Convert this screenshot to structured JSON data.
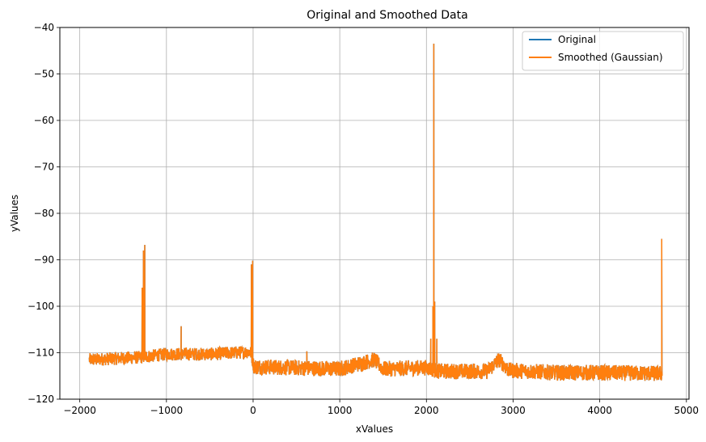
{
  "chart_data": {
    "type": "line",
    "title": "Original and Smoothed Data",
    "xlabel": "xValues",
    "ylabel": "yValues",
    "xlim": [
      -2230,
      5030
    ],
    "ylim": [
      -120,
      -40
    ],
    "xticks": [
      -2000,
      -1000,
      0,
      1000,
      2000,
      3000,
      4000,
      5000
    ],
    "yticks": [
      -120,
      -110,
      -100,
      -90,
      -80,
      -70,
      -60,
      -50,
      -40
    ],
    "grid": true,
    "legend_position": "top-right",
    "series": [
      {
        "name": "Original",
        "color": "#1f77b4"
      },
      {
        "name": "Smoothed (Gaussian)",
        "color": "#ff7f0e"
      }
    ],
    "x_range_data": [
      -1890,
      4720
    ],
    "baseline": [
      {
        "x": -1890,
        "y": -111.5
      },
      {
        "x": -1300,
        "y": -111.0
      },
      {
        "x": -1000,
        "y": -110.3
      },
      {
        "x": -500,
        "y": -110.3
      },
      {
        "x": -30,
        "y": -109.8
      },
      {
        "x": 10,
        "y": -113.0
      },
      {
        "x": 1000,
        "y": -113.5
      },
      {
        "x": 1300,
        "y": -112.0
      },
      {
        "x": 1400,
        "y": -111.5
      },
      {
        "x": 1500,
        "y": -113.5
      },
      {
        "x": 2000,
        "y": -113.2
      },
      {
        "x": 2150,
        "y": -114.0
      },
      {
        "x": 2700,
        "y": -114.0
      },
      {
        "x": 2840,
        "y": -111.5
      },
      {
        "x": 2950,
        "y": -113.8
      },
      {
        "x": 3500,
        "y": -114.3
      },
      {
        "x": 4000,
        "y": -114.3
      },
      {
        "x": 4700,
        "y": -114.5
      }
    ],
    "peaks": [
      {
        "x": -1280,
        "y": -96
      },
      {
        "x": -1265,
        "y": -88
      },
      {
        "x": -1250,
        "y": -86.8
      },
      {
        "x": -830,
        "y": -104.3
      },
      {
        "x": -20,
        "y": -91
      },
      {
        "x": -5,
        "y": -90.2
      },
      {
        "x": 620,
        "y": -109.7
      },
      {
        "x": 2050,
        "y": -107
      },
      {
        "x": 2075,
        "y": -100
      },
      {
        "x": 2085,
        "y": -43.5
      },
      {
        "x": 2095,
        "y": -99
      },
      {
        "x": 2120,
        "y": -107
      },
      {
        "x": 4715,
        "y": -85.5
      }
    ]
  }
}
